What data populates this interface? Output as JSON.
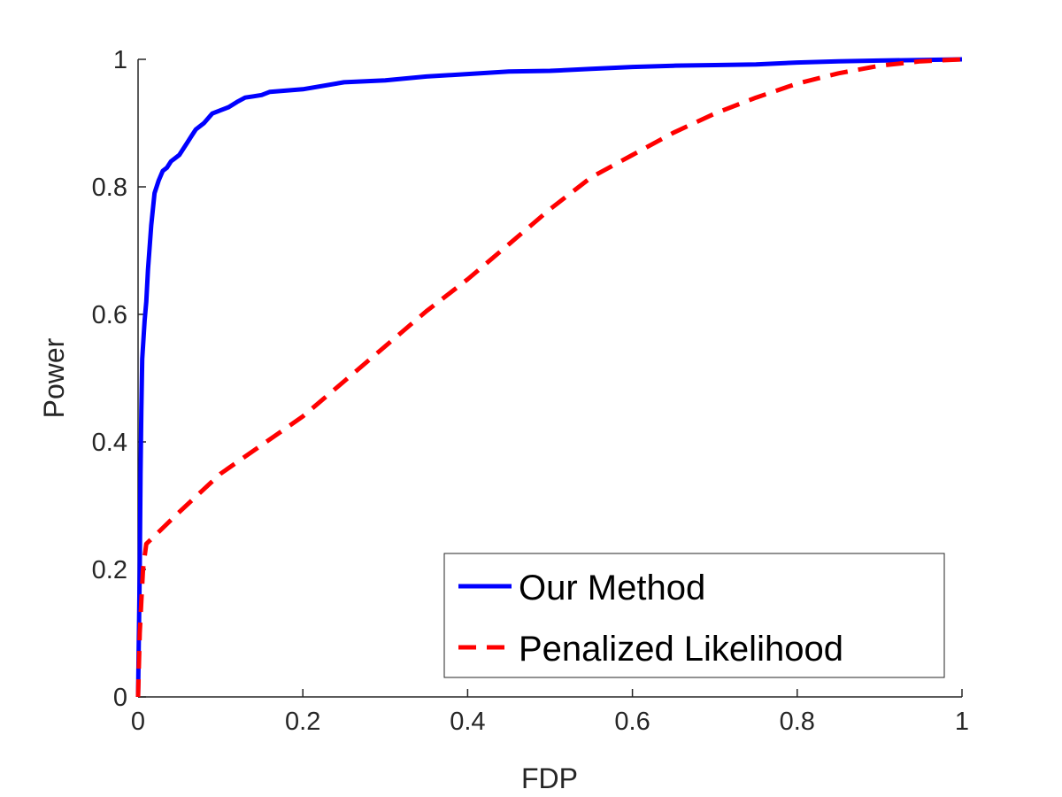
{
  "chart_data": {
    "type": "line",
    "title": "",
    "xlabel": "FDP",
    "ylabel": "Power",
    "xlim": [
      0,
      1
    ],
    "ylim": [
      0,
      1
    ],
    "xticks": [
      0,
      0.2,
      0.4,
      0.6,
      0.8,
      1
    ],
    "xtick_labels": [
      "0",
      "0.2",
      "0.4",
      "0.6",
      "0.8",
      "1"
    ],
    "yticks": [
      0,
      0.2,
      0.4,
      0.6,
      0.8,
      1
    ],
    "ytick_labels": [
      "0",
      "0.2",
      "0.4",
      "0.6",
      "0.8",
      "1"
    ],
    "grid": false,
    "legend_position": "bottom-right",
    "series": [
      {
        "name": "Our Method",
        "color": "#0000ff",
        "style": "solid",
        "x": [
          0,
          0.002,
          0.003,
          0.004,
          0.005,
          0.008,
          0.01,
          0.012,
          0.016,
          0.02,
          0.025,
          0.03,
          0.035,
          0.04,
          0.045,
          0.05,
          0.06,
          0.065,
          0.07,
          0.08,
          0.09,
          0.1,
          0.11,
          0.12,
          0.13,
          0.14,
          0.15,
          0.16,
          0.17,
          0.2,
          0.25,
          0.3,
          0.35,
          0.4,
          0.45,
          0.5,
          0.55,
          0.6,
          0.65,
          0.7,
          0.75,
          0.8,
          0.85,
          0.9,
          0.95,
          1
        ],
        "y": [
          0,
          0.2,
          0.35,
          0.45,
          0.53,
          0.59,
          0.62,
          0.67,
          0.74,
          0.79,
          0.81,
          0.825,
          0.83,
          0.84,
          0.845,
          0.85,
          0.87,
          0.88,
          0.89,
          0.9,
          0.915,
          0.92,
          0.925,
          0.933,
          0.94,
          0.942,
          0.944,
          0.949,
          0.95,
          0.953,
          0.964,
          0.967,
          0.973,
          0.977,
          0.981,
          0.982,
          0.985,
          0.988,
          0.99,
          0.991,
          0.992,
          0.995,
          0.997,
          0.998,
          0.999,
          1.0
        ]
      },
      {
        "name": "Penalized Likelihood",
        "color": "#ff0000",
        "style": "dashed",
        "x": [
          0,
          0.002,
          0.004,
          0.006,
          0.008,
          0.01,
          0.05,
          0.1,
          0.15,
          0.2,
          0.25,
          0.3,
          0.35,
          0.4,
          0.45,
          0.5,
          0.55,
          0.6,
          0.65,
          0.7,
          0.75,
          0.8,
          0.85,
          0.9,
          0.95,
          1
        ],
        "y": [
          0,
          0.1,
          0.15,
          0.2,
          0.22,
          0.24,
          0.29,
          0.35,
          0.395,
          0.44,
          0.495,
          0.55,
          0.605,
          0.655,
          0.71,
          0.765,
          0.815,
          0.85,
          0.885,
          0.915,
          0.94,
          0.962,
          0.978,
          0.99,
          0.997,
          1.0
        ]
      }
    ]
  }
}
